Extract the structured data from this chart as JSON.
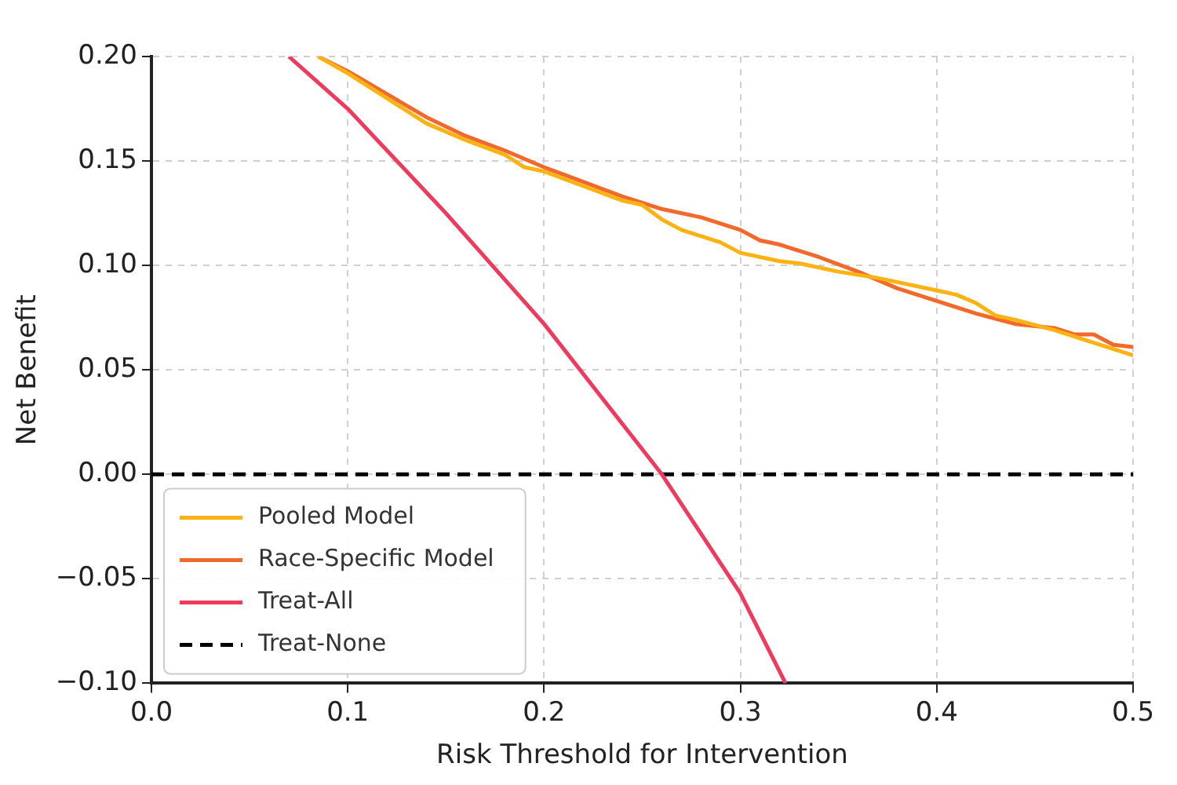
{
  "chart_data": {
    "type": "line",
    "xlabel": "Risk Threshold for Intervention",
    "ylabel": "Net Benefit",
    "xlim": [
      0,
      0.5
    ],
    "ylim": [
      -0.1,
      0.2
    ],
    "xticks": [
      {
        "value": 0,
        "label": "0.0"
      },
      0.1,
      0.2,
      0.3,
      0.4,
      0.5
    ],
    "yticks": [
      {
        "value": -0.1,
        "label": "−0.10"
      },
      {
        "value": -0.05,
        "label": "−0.05"
      },
      {
        "value": 0,
        "label": "0.00"
      },
      0.05,
      {
        "value": 0.1,
        "label": "0.10"
      },
      0.15,
      {
        "value": 0.2,
        "label": "0.20"
      }
    ],
    "grid": true,
    "legend": "bottom left",
    "marker": "none",
    "series": [
      {
        "name": "Pooled Model",
        "color": "#fbb314",
        "x": [
          0.085,
          0.1,
          0.12,
          0.14,
          0.16,
          0.18,
          0.19,
          0.2,
          0.22,
          0.24,
          0.25,
          0.26,
          0.27,
          0.28,
          0.29,
          0.3,
          0.32,
          0.33,
          0.35,
          0.37,
          0.38,
          0.4,
          0.41,
          0.42,
          0.43,
          0.44,
          0.46,
          0.48,
          0.5
        ],
        "values": [
          0.2,
          0.192,
          0.18,
          0.168,
          0.16,
          0.153,
          0.147,
          0.145,
          0.138,
          0.131,
          0.129,
          0.122,
          0.117,
          0.114,
          0.111,
          0.106,
          0.102,
          0.101,
          0.097,
          0.094,
          0.092,
          0.088,
          0.086,
          0.082,
          0.076,
          0.074,
          0.069,
          0.063,
          0.057
        ]
      },
      {
        "name": "Race-Specific Model",
        "color": "#f26a2b",
        "x": [
          0.085,
          0.1,
          0.12,
          0.14,
          0.16,
          0.18,
          0.2,
          0.22,
          0.24,
          0.26,
          0.28,
          0.3,
          0.31,
          0.32,
          0.34,
          0.36,
          0.38,
          0.4,
          0.42,
          0.44,
          0.46,
          0.47,
          0.48,
          0.49,
          0.5
        ],
        "values": [
          0.2,
          0.193,
          0.182,
          0.171,
          0.162,
          0.155,
          0.147,
          0.14,
          0.133,
          0.127,
          0.123,
          0.117,
          0.112,
          0.11,
          0.104,
          0.097,
          0.089,
          0.083,
          0.077,
          0.072,
          0.07,
          0.067,
          0.067,
          0.062,
          0.061
        ]
      },
      {
        "name": "Treat-All",
        "color": "#ee3a5c",
        "x": [
          0.07,
          0.1,
          0.15,
          0.2,
          0.25,
          0.26,
          0.3,
          0.323
        ],
        "values": [
          0.2,
          0.175,
          0.125,
          0.072,
          0.012,
          0,
          -0.057,
          -0.1
        ]
      },
      {
        "name": "Treat-None",
        "color": "#000000",
        "line_style": "dashed",
        "x": [
          0,
          0.5
        ],
        "values": [
          0,
          0
        ]
      }
    ]
  }
}
